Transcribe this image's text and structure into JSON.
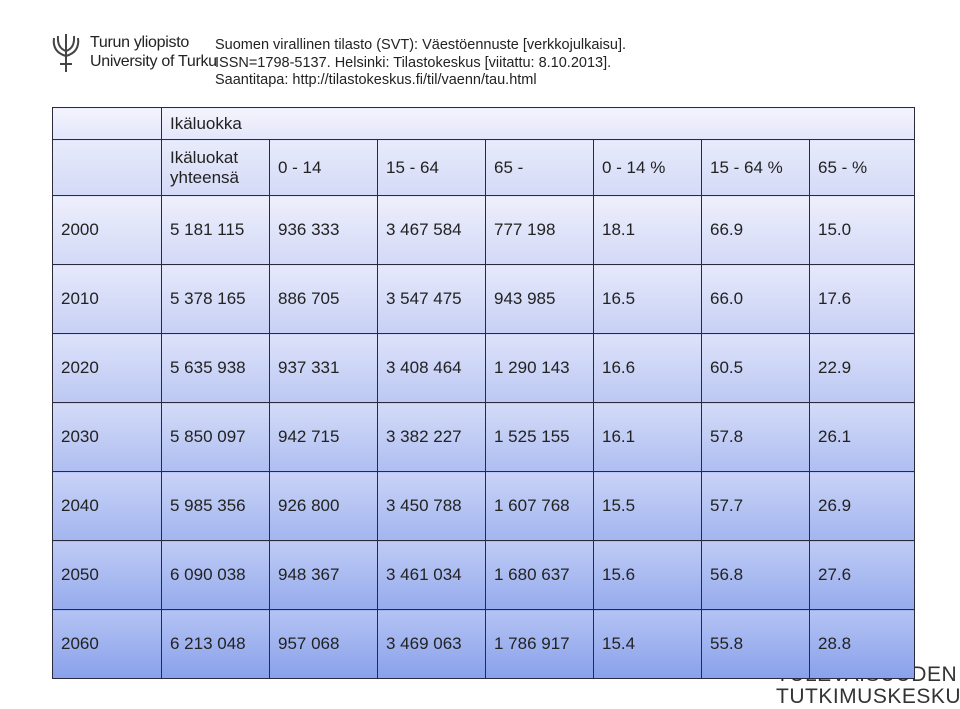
{
  "logo": {
    "line1": "Turun yliopisto",
    "line2": "University of Turku"
  },
  "source": [
    "Suomen virallinen tilasto (SVT): Väestöennuste [verkkojulkaisu].",
    "ISSN=1798-5137. Helsinki: Tilastokeskus [viitattu: 8.10.2013].",
    "Saantitapa: http://tilastokeskus.fi/til/vaenn/tau.html"
  ],
  "table": {
    "group_header": "Ikäluokka",
    "columns": [
      "Ikäluokat yhteensä",
      "0 - 14",
      "15 - 64",
      "65 -",
      "0 - 14 %",
      "15 - 64 %",
      "65 - %"
    ],
    "rows": [
      [
        "2000",
        "5 181 115",
        "936 333",
        "3 467 584",
        "777 198",
        "18.1",
        "66.9",
        "15.0"
      ],
      [
        "2010",
        "5 378 165",
        "886 705",
        "3 547 475",
        "943 985",
        "16.5",
        "66.0",
        "17.6"
      ],
      [
        "2020",
        "5 635 938",
        "937 331",
        "3 408 464",
        "1 290 143",
        "16.6",
        "60.5",
        "22.9"
      ],
      [
        "2030",
        "5 850 097",
        "942 715",
        "3 382 227",
        "1 525 155",
        "16.1",
        "57.8",
        "26.1"
      ],
      [
        "2040",
        "5 985 356",
        "926 800",
        "3 450 788",
        "1 607 768",
        "15.5",
        "57.7",
        "26.9"
      ],
      [
        "2050",
        "6 090 038",
        "948 367",
        "3 461 034",
        "1 680 637",
        "15.6",
        "56.8",
        "27.6"
      ],
      [
        "2060",
        "6 213 048",
        "957 068",
        "3 469 063",
        "1 786 917",
        "15.4",
        "55.8",
        "28.8"
      ]
    ]
  },
  "footer": {
    "line1": "TULEVAISUUDEN",
    "line2": "TUTKIMUSKESKUS"
  }
}
